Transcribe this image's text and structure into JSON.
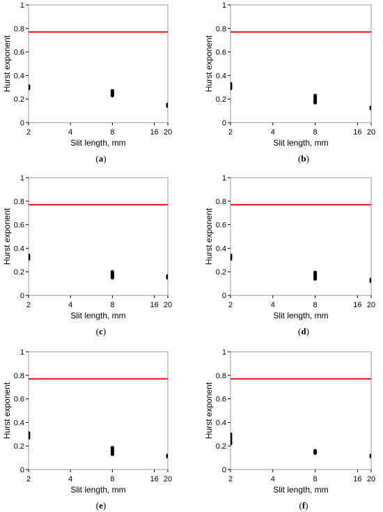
{
  "figure": {
    "reference_line_color": "#e8161b",
    "point_color": "#000000",
    "frame_color": "#9a9a9a"
  },
  "chart_data": [
    {
      "type": "scatter",
      "panel_label": "a",
      "xlabel": "Slit length, mm",
      "ylabel": "Hurst exponent",
      "x_scale": "log",
      "xlim": [
        2,
        20
      ],
      "ylim": [
        0,
        1
      ],
      "x_ticks": [
        2,
        4,
        8,
        16,
        20
      ],
      "y_ticks": [
        0,
        0.2,
        0.4,
        0.6,
        0.8,
        1
      ],
      "x_tick_labels": [
        "2",
        "4",
        "8",
        "16",
        "20"
      ],
      "y_tick_labels": [
        "0",
        "0.2",
        "0.4",
        "0.6",
        "0.8",
        "1"
      ],
      "reference_line": 0.77,
      "points": [
        {
          "x": 2,
          "y": 0.29
        },
        {
          "x": 2,
          "y": 0.3
        },
        {
          "x": 2,
          "y": 0.31
        },
        {
          "x": 8,
          "y": 0.23
        },
        {
          "x": 8,
          "y": 0.245
        },
        {
          "x": 8,
          "y": 0.26
        },
        {
          "x": 8,
          "y": 0.27
        },
        {
          "x": 20,
          "y": 0.14
        },
        {
          "x": 20,
          "y": 0.155
        }
      ]
    },
    {
      "type": "scatter",
      "panel_label": "b",
      "xlabel": "Slit length, mm",
      "ylabel": "Hurst exponent",
      "x_scale": "log",
      "xlim": [
        2,
        20
      ],
      "ylim": [
        0,
        1
      ],
      "x_ticks": [
        2,
        4,
        8,
        16,
        20
      ],
      "y_ticks": [
        0,
        0.2,
        0.4,
        0.6,
        0.8,
        1
      ],
      "x_tick_labels": [
        "2",
        "4",
        "8",
        "16",
        "20"
      ],
      "y_tick_labels": [
        "0",
        "0.2",
        "0.4",
        "0.6",
        "0.8",
        "1"
      ],
      "reference_line": 0.77,
      "points": [
        {
          "x": 2,
          "y": 0.29
        },
        {
          "x": 2,
          "y": 0.3
        },
        {
          "x": 2,
          "y": 0.315
        },
        {
          "x": 2,
          "y": 0.33
        },
        {
          "x": 8,
          "y": 0.17
        },
        {
          "x": 8,
          "y": 0.185
        },
        {
          "x": 8,
          "y": 0.2
        },
        {
          "x": 8,
          "y": 0.215
        },
        {
          "x": 8,
          "y": 0.23
        },
        {
          "x": 20,
          "y": 0.12
        },
        {
          "x": 20,
          "y": 0.13
        }
      ]
    },
    {
      "type": "scatter",
      "panel_label": "c",
      "xlabel": "Slit length, mm",
      "ylabel": "Hurst exponent",
      "x_scale": "log",
      "xlim": [
        2,
        20
      ],
      "ylim": [
        0,
        1
      ],
      "x_ticks": [
        2,
        4,
        8,
        16,
        20
      ],
      "y_ticks": [
        0,
        0.2,
        0.4,
        0.6,
        0.8,
        1
      ],
      "x_tick_labels": [
        "2",
        "4",
        "8",
        "16",
        "20"
      ],
      "y_tick_labels": [
        "0",
        "0.2",
        "0.4",
        "0.6",
        "0.8",
        "1"
      ],
      "reference_line": 0.77,
      "points": [
        {
          "x": 2,
          "y": 0.31
        },
        {
          "x": 2,
          "y": 0.325
        },
        {
          "x": 2,
          "y": 0.34
        },
        {
          "x": 8,
          "y": 0.15
        },
        {
          "x": 8,
          "y": 0.16
        },
        {
          "x": 8,
          "y": 0.17
        },
        {
          "x": 8,
          "y": 0.185
        },
        {
          "x": 8,
          "y": 0.2
        },
        {
          "x": 20,
          "y": 0.15
        },
        {
          "x": 20,
          "y": 0.165
        }
      ]
    },
    {
      "type": "scatter",
      "panel_label": "d",
      "xlabel": "Slit length, mm",
      "ylabel": "Hurst exponent",
      "x_scale": "log",
      "xlim": [
        2,
        20
      ],
      "ylim": [
        0,
        1
      ],
      "x_ticks": [
        2,
        4,
        8,
        16,
        20
      ],
      "y_ticks": [
        0,
        0.2,
        0.4,
        0.6,
        0.8,
        1
      ],
      "x_tick_labels": [
        "2",
        "4",
        "8",
        "16",
        "20"
      ],
      "y_tick_labels": [
        "0",
        "0.2",
        "0.4",
        "0.6",
        "0.8",
        "1"
      ],
      "reference_line": 0.77,
      "points": [
        {
          "x": 2,
          "y": 0.31
        },
        {
          "x": 2,
          "y": 0.325
        },
        {
          "x": 2,
          "y": 0.34
        },
        {
          "x": 8,
          "y": 0.14
        },
        {
          "x": 8,
          "y": 0.155
        },
        {
          "x": 8,
          "y": 0.17
        },
        {
          "x": 8,
          "y": 0.185
        },
        {
          "x": 8,
          "y": 0.195
        },
        {
          "x": 20,
          "y": 0.12
        },
        {
          "x": 20,
          "y": 0.135
        }
      ]
    },
    {
      "type": "scatter",
      "panel_label": "e",
      "xlabel": "Slit length, mm",
      "ylabel": "Hurst exponent",
      "x_scale": "log",
      "xlim": [
        2,
        20
      ],
      "ylim": [
        0,
        1
      ],
      "x_ticks": [
        2,
        4,
        8,
        16,
        20
      ],
      "y_ticks": [
        0,
        0.2,
        0.4,
        0.6,
        0.8,
        1
      ],
      "x_tick_labels": [
        "2",
        "4",
        "8",
        "16",
        "20"
      ],
      "y_tick_labels": [
        "0",
        "0.2",
        "0.4",
        "0.6",
        "0.8",
        "1"
      ],
      "reference_line": 0.77,
      "points": [
        {
          "x": 2,
          "y": 0.27
        },
        {
          "x": 2,
          "y": 0.29
        },
        {
          "x": 2,
          "y": 0.31
        },
        {
          "x": 8,
          "y": 0.13
        },
        {
          "x": 8,
          "y": 0.145
        },
        {
          "x": 8,
          "y": 0.16
        },
        {
          "x": 8,
          "y": 0.175
        },
        {
          "x": 8,
          "y": 0.185
        },
        {
          "x": 20,
          "y": 0.11
        },
        {
          "x": 20,
          "y": 0.12
        }
      ]
    },
    {
      "type": "scatter",
      "panel_label": "f",
      "xlabel": "Slit length, mm",
      "ylabel": "Hurst exponent",
      "x_scale": "log",
      "xlim": [
        2,
        20
      ],
      "ylim": [
        0,
        1
      ],
      "x_ticks": [
        2,
        4,
        8,
        16,
        20
      ],
      "y_ticks": [
        0,
        0.2,
        0.4,
        0.6,
        0.8,
        1
      ],
      "x_tick_labels": [
        "2",
        "4",
        "8",
        "16",
        "20"
      ],
      "y_tick_labels": [
        "0",
        "0.2",
        "0.4",
        "0.6",
        "0.8",
        "1"
      ],
      "reference_line": 0.77,
      "points": [
        {
          "x": 2,
          "y": 0.22
        },
        {
          "x": 2,
          "y": 0.24
        },
        {
          "x": 2,
          "y": 0.26
        },
        {
          "x": 2,
          "y": 0.28
        },
        {
          "x": 2,
          "y": 0.3
        },
        {
          "x": 8,
          "y": 0.14
        },
        {
          "x": 8,
          "y": 0.15
        },
        {
          "x": 8,
          "y": 0.16
        },
        {
          "x": 20,
          "y": 0.11
        },
        {
          "x": 20,
          "y": 0.12
        }
      ]
    }
  ]
}
